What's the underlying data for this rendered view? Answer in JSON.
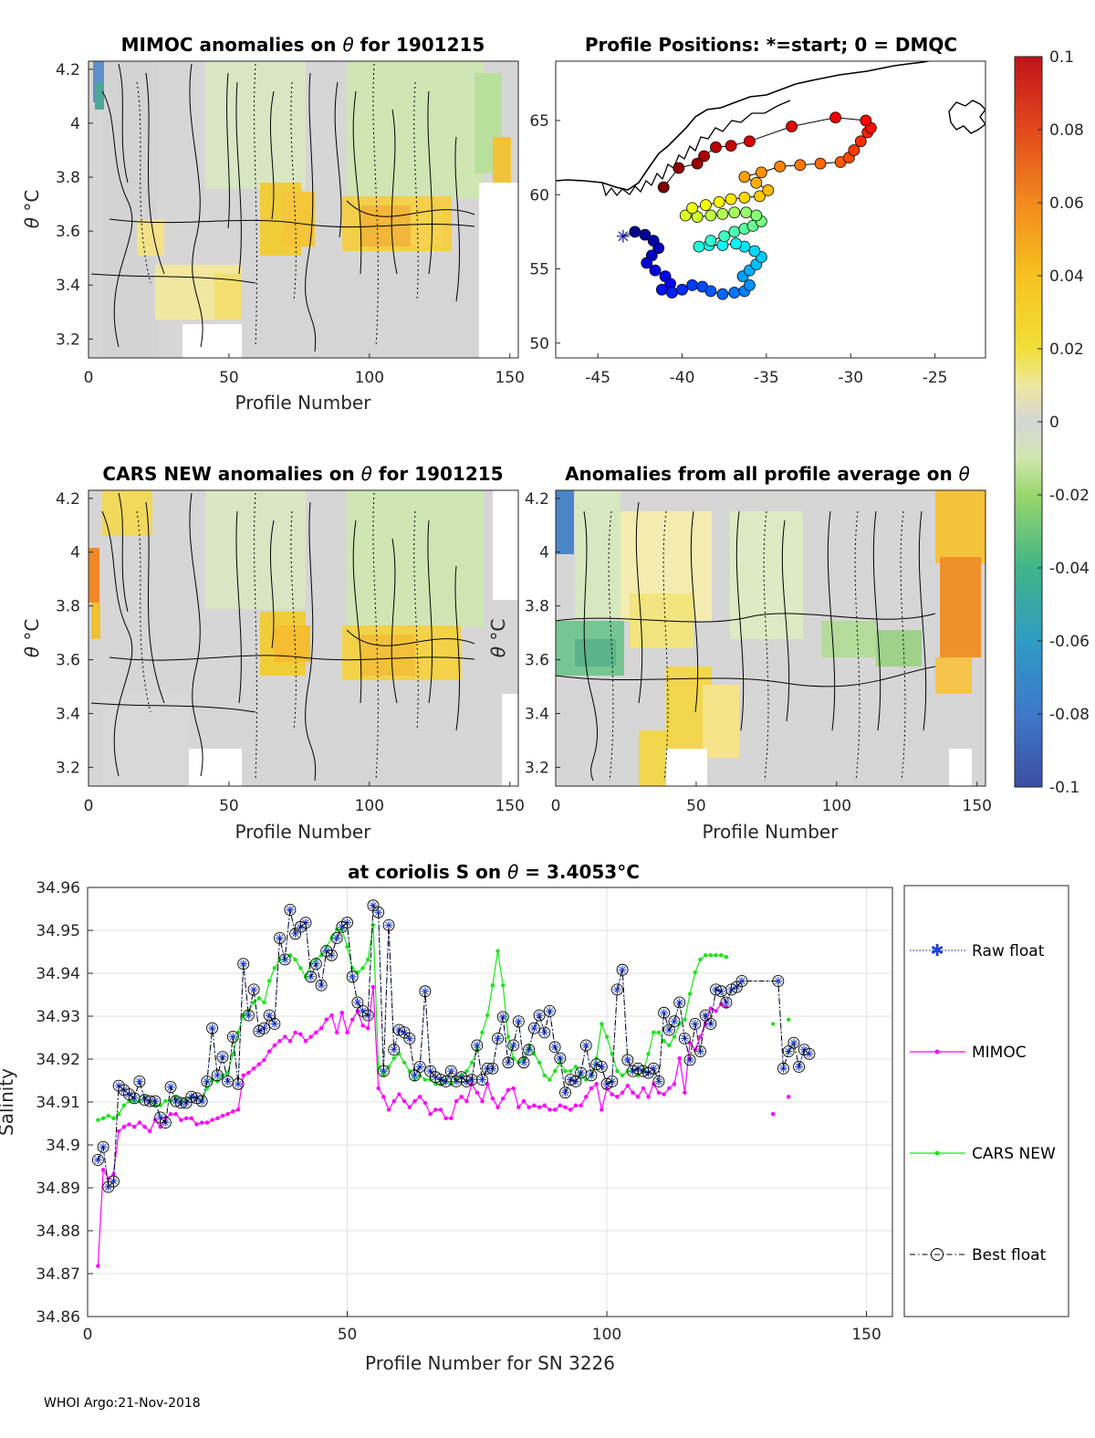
{
  "footer": "WHOI Argo:21-Nov-2018",
  "colors": {
    "raw": "#1f3fd6",
    "mimoc": "#ff00ff",
    "cars": "#19e619",
    "best": "#000000"
  },
  "chart_data": [
    {
      "id": "mimoc_anomalies",
      "type": "heatmap",
      "title_pre": "MIMOC anomalies on ",
      "title_sym": "θ",
      "title_post": "  for 1901215",
      "xlabel": "Profile Number",
      "ylabel_sym": "θ",
      "ylabel_unit": "°C",
      "xlim": [
        0,
        153
      ],
      "ylim": [
        3.13,
        4.23
      ],
      "xticks": [
        0,
        50,
        100,
        150
      ],
      "yticks": [
        3.2,
        3.4,
        3.6,
        3.8,
        4,
        4.2
      ],
      "colorbar": "shared"
    },
    {
      "id": "profile_positions",
      "type": "scatter",
      "title": "Profile Positions: *=start; 0 = DMQC",
      "xlabel": "",
      "ylabel": "",
      "xlim": [
        -47.5,
        -22
      ],
      "ylim": [
        49,
        69
      ],
      "xticks": [
        -45,
        -40,
        -35,
        -30,
        -25
      ],
      "yticks": [
        50,
        55,
        60,
        65
      ],
      "start": [
        -43.5,
        57.2
      ],
      "track": [
        [
          -43.5,
          57.2
        ],
        [
          -42.8,
          57.5
        ],
        [
          -42.2,
          57.3
        ],
        [
          -41.7,
          56.9
        ],
        [
          -41.4,
          56.4
        ],
        [
          -41.8,
          55.9
        ],
        [
          -42.1,
          55.4
        ],
        [
          -41.6,
          54.9
        ],
        [
          -41.0,
          54.5
        ],
        [
          -40.7,
          54.0
        ],
        [
          -41.2,
          53.6
        ],
        [
          -40.6,
          53.4
        ],
        [
          -40.0,
          53.6
        ],
        [
          -39.4,
          53.9
        ],
        [
          -38.8,
          53.8
        ],
        [
          -38.3,
          53.5
        ],
        [
          -37.6,
          53.3
        ],
        [
          -36.9,
          53.4
        ],
        [
          -36.3,
          53.5
        ],
        [
          -36.0,
          53.9
        ],
        [
          -36.4,
          54.5
        ],
        [
          -36.0,
          54.9
        ],
        [
          -35.6,
          55.3
        ],
        [
          -35.3,
          55.8
        ],
        [
          -35.7,
          56.2
        ],
        [
          -36.3,
          56.5
        ],
        [
          -36.8,
          56.7
        ],
        [
          -37.6,
          56.6
        ],
        [
          -38.4,
          56.6
        ],
        [
          -39.0,
          56.5
        ],
        [
          -38.3,
          56.9
        ],
        [
          -37.5,
          57.2
        ],
        [
          -36.9,
          57.5
        ],
        [
          -36.3,
          57.7
        ],
        [
          -35.8,
          57.9
        ],
        [
          -35.3,
          58.2
        ],
        [
          -35.6,
          58.6
        ],
        [
          -36.2,
          58.8
        ],
        [
          -36.9,
          58.8
        ],
        [
          -37.6,
          58.7
        ],
        [
          -38.3,
          58.6
        ],
        [
          -39.1,
          58.5
        ],
        [
          -39.8,
          58.6
        ],
        [
          -39.4,
          59.1
        ],
        [
          -38.6,
          59.3
        ],
        [
          -37.8,
          59.5
        ],
        [
          -37.1,
          59.7
        ],
        [
          -36.3,
          59.8
        ],
        [
          -35.4,
          59.9
        ],
        [
          -34.9,
          60.3
        ],
        [
          -35.6,
          60.8
        ],
        [
          -36.3,
          61.2
        ],
        [
          -35.3,
          61.5
        ],
        [
          -34.2,
          61.9
        ],
        [
          -33.0,
          62.0
        ],
        [
          -31.8,
          62.1
        ],
        [
          -30.6,
          62.2
        ],
        [
          -30.1,
          62.5
        ],
        [
          -29.8,
          63.0
        ],
        [
          -29.4,
          63.6
        ],
        [
          -29.0,
          64.2
        ],
        [
          -28.8,
          64.5
        ],
        [
          -29.1,
          65.0
        ],
        [
          -30.9,
          65.2
        ],
        [
          -33.5,
          64.6
        ],
        [
          -36.0,
          63.6
        ],
        [
          -37.1,
          63.3
        ],
        [
          -38.0,
          63.2
        ],
        [
          -38.7,
          62.6
        ],
        [
          -39.1,
          62.1
        ],
        [
          -40.2,
          61.8
        ],
        [
          -41.1,
          60.5
        ]
      ]
    },
    {
      "id": "cars_anomalies",
      "type": "heatmap",
      "title_pre": "CARS NEW anomalies on ",
      "title_sym": "θ",
      "title_post": " for 1901215",
      "xlabel": "Profile Number",
      "ylabel_sym": "θ",
      "ylabel_unit": "°C",
      "xlim": [
        0,
        153
      ],
      "ylim": [
        3.13,
        4.23
      ],
      "xticks": [
        0,
        50,
        100,
        150
      ],
      "yticks": [
        3.2,
        3.4,
        3.6,
        3.8,
        4,
        4.2
      ]
    },
    {
      "id": "avg_anomalies",
      "type": "heatmap",
      "title_pre": "Anomalies from all profile average on ",
      "title_sym": "θ",
      "title_post": "",
      "xlabel": "Profile Number",
      "ylabel_sym": "θ",
      "ylabel_unit": "°C",
      "xlim": [
        0,
        153
      ],
      "ylim": [
        3.13,
        4.23
      ],
      "xticks": [
        0,
        50,
        100,
        150
      ],
      "yticks": [
        3.2,
        3.4,
        3.6,
        3.8,
        4,
        4.2
      ]
    },
    {
      "id": "colorbar",
      "type": "colorbar",
      "range": [
        -0.1,
        0.1
      ],
      "ticks": [
        "0.1",
        "0.08",
        "0.06",
        "0.04",
        "0.02",
        "0",
        "-0.02",
        "-0.04",
        "-0.06",
        "-0.08",
        "-0.1"
      ]
    },
    {
      "id": "salinity",
      "type": "line",
      "title_pre": "at coriolis S on ",
      "title_sym": "θ",
      "title_post": " = 3.4053°C",
      "xlabel": "Profile Number for SN 3226",
      "ylabel": "Salinity",
      "xlim": [
        0,
        155
      ],
      "ylim": [
        34.86,
        34.96
      ],
      "xticks": [
        0,
        50,
        100,
        150
      ],
      "yticks": [
        "34.86",
        "34.87",
        "34.88",
        "34.89",
        "34.9",
        "34.91",
        "34.92",
        "34.93",
        "34.94",
        "34.95",
        "34.96"
      ],
      "x_start": 2,
      "legend": [
        "Raw float",
        "MIMOC",
        "CARS NEW",
        "Best float"
      ],
      "series": [
        {
          "name": "Raw float",
          "values": [
            34.8965,
            34.8995,
            34.8902,
            34.8915,
            34.9138,
            34.9128,
            34.9118,
            34.9109,
            34.9148,
            34.9105,
            34.9102,
            34.9102,
            34.9064,
            34.9052,
            34.9135,
            34.9102,
            34.9098,
            34.9098,
            34.9112,
            34.9109,
            34.9102,
            34.9148,
            34.9272,
            34.9162,
            34.9205,
            34.9148,
            34.9252,
            34.9142,
            34.9422,
            34.9302,
            34.9362,
            34.9265,
            34.9272,
            34.9302,
            34.9282,
            34.9482,
            34.9432,
            34.9548,
            34.9492,
            34.9508,
            34.9518,
            34.9392,
            34.9422,
            34.9372,
            34.9452,
            34.9442,
            34.9482,
            34.9508,
            34.9518,
            34.9392,
            34.9332,
            34.9312,
            34.9302,
            34.9558,
            34.9542,
            34.9172,
            34.9512,
            34.9222,
            34.9268,
            34.9262,
            34.9248,
            34.9162,
            34.9182,
            34.9358,
            34.9172,
            34.9158,
            34.9152,
            34.9148,
            34.9172,
            34.9148,
            34.9158,
            34.9148,
            34.9152,
            34.9232,
            34.9152,
            34.9178,
            34.9178,
            34.9248,
            34.9298,
            34.9192,
            34.9232,
            34.9288,
            34.9192,
            34.9222,
            34.9272,
            34.9302,
            34.9262,
            34.9312,
            34.9228,
            34.9202,
            34.9122,
            34.9152,
            34.9148,
            34.9168,
            34.9232,
            34.9162,
            34.9188,
            34.9182,
            34.9142,
            34.9148,
            34.9362,
            34.9408,
            34.9198,
            34.9172,
            34.9178,
            34.9172,
            34.9168,
            34.9178,
            34.9148,
            34.9308,
            34.9268,
            34.9288,
            34.9332,
            34.9248,
            34.9198,
            34.9282,
            34.9218,
            34.9302,
            34.9282,
            34.9362,
            34.9358,
            34.9332,
            34.9362,
            34.9368,
            34.9382,
            null,
            null,
            null,
            null,
            null,
            null,
            34.9382,
            34.9178,
            34.9218,
            34.9238,
            34.9182,
            34.9222,
            34.9212
          ]
        },
        {
          "name": "MIMOC",
          "values": [
            34.8718,
            34.8942,
            34.8922,
            34.8932,
            34.9032,
            34.9042,
            34.9048,
            34.9042,
            34.9052,
            34.9042,
            34.9032,
            34.9058,
            34.9042,
            34.9062,
            34.9072,
            34.9072,
            34.9058,
            34.9062,
            34.9062,
            34.9048,
            34.9052,
            34.9052,
            34.9058,
            34.9062,
            34.9068,
            34.9072,
            34.9078,
            34.9082,
            34.9162,
            34.9168,
            34.9178,
            34.9188,
            34.9198,
            34.9218,
            34.9232,
            34.9242,
            34.9252,
            34.9242,
            34.9262,
            34.9258,
            34.9242,
            34.9252,
            34.9262,
            34.9272,
            34.9292,
            34.9302,
            34.9262,
            34.9308,
            34.9262,
            34.9292,
            34.9312,
            34.9278,
            34.9272,
            34.9368,
            34.9132,
            34.9112,
            34.9082,
            34.9102,
            34.9118,
            34.9102,
            34.9088,
            34.9102,
            34.9112,
            34.9098,
            34.9072,
            34.9082,
            34.9082,
            34.9062,
            34.9062,
            34.9102,
            34.9112,
            34.9102,
            34.9142,
            34.9122,
            34.9102,
            34.9142,
            34.9108,
            34.9088,
            34.9108,
            34.9128,
            34.9132,
            34.9088,
            34.9102,
            34.9088,
            34.9092,
            34.9088,
            34.9092,
            34.9082,
            34.9082,
            34.9092,
            34.9088,
            34.9082,
            34.9092,
            34.9092,
            34.9112,
            34.9132,
            34.9142,
            34.9082,
            34.9132,
            34.9118,
            34.9112,
            34.9122,
            34.9138,
            34.9122,
            34.9112,
            34.9132,
            34.9112,
            34.9142,
            34.9122,
            34.9118,
            34.9132,
            34.9142,
            34.9202,
            34.9122,
            34.9238,
            34.9222,
            34.9252,
            34.9282,
            34.9318,
            34.9312,
            34.9328,
            34.9322,
            null,
            null,
            null,
            null,
            null,
            null,
            null,
            null,
            34.9072,
            null,
            null,
            34.9112,
            null
          ]
        },
        {
          "name": "CARS NEW",
          "values": [
            34.9058,
            34.9062,
            34.9068,
            34.9062,
            34.9072,
            34.9092,
            34.9102,
            34.9102,
            34.9102,
            34.9112,
            34.9102,
            34.9092,
            34.9092,
            34.9102,
            34.9102,
            34.9112,
            34.9102,
            34.9102,
            34.9112,
            34.9112,
            34.9102,
            34.9132,
            34.9152,
            34.9148,
            34.9162,
            34.9168,
            34.9212,
            34.9262,
            34.9302,
            34.9312,
            34.9332,
            34.9342,
            34.9332,
            34.9382,
            34.9412,
            34.9432,
            34.9432,
            34.9442,
            34.9432,
            34.9412,
            34.9392,
            34.9422,
            34.9432,
            34.9442,
            34.9462,
            34.9482,
            34.9502,
            34.9502,
            34.9462,
            34.9412,
            34.9402,
            34.9412,
            34.9432,
            34.9512,
            34.9182,
            34.9162,
            34.9182,
            34.9202,
            34.9212,
            34.9192,
            34.9172,
            34.9152,
            34.9162,
            34.9152,
            34.9152,
            34.9142,
            34.9142,
            34.9152,
            34.9142,
            34.9152,
            34.9162,
            34.9172,
            34.9192,
            34.9222,
            34.9262,
            34.9302,
            34.9372,
            34.9452,
            34.9372,
            34.9252,
            34.9202,
            34.9192,
            34.9202,
            34.9232,
            34.9212,
            34.9192,
            34.9162,
            34.9152,
            34.9172,
            34.9192,
            34.9172,
            34.9172,
            34.9182,
            34.9162,
            34.9152,
            34.9162,
            34.9202,
            34.9282,
            34.9252,
            34.9212,
            34.9172,
            34.9162,
            34.9172,
            34.9172,
            34.9162,
            34.9172,
            34.9212,
            34.9262,
            34.9262,
            34.9242,
            34.9232,
            34.9252,
            34.9282,
            34.9292,
            34.9352,
            34.9402,
            34.9432,
            34.9442,
            34.9442,
            34.9442,
            34.9442,
            34.9438,
            null,
            null,
            null,
            null,
            null,
            null,
            null,
            null,
            34.9282,
            null,
            null,
            34.9292,
            null
          ]
        },
        {
          "name": "Best float",
          "values": [
            34.8965,
            34.8995,
            34.8902,
            34.8915,
            34.9138,
            34.9128,
            34.9118,
            34.9109,
            34.9148,
            34.9105,
            34.9102,
            34.9102,
            34.9064,
            34.9052,
            34.9135,
            34.9102,
            34.9098,
            34.9098,
            34.9112,
            34.9109,
            34.9102,
            34.9148,
            34.9272,
            34.9162,
            34.9205,
            34.9148,
            34.9252,
            34.9142,
            34.9422,
            34.9302,
            34.9362,
            34.9265,
            34.9272,
            34.9302,
            34.9282,
            34.9482,
            34.9432,
            34.9548,
            34.9492,
            34.9508,
            34.9518,
            34.9392,
            34.9422,
            34.9372,
            34.9452,
            34.9442,
            34.9482,
            34.9508,
            34.9518,
            34.9392,
            34.9332,
            34.9312,
            34.9302,
            34.9558,
            34.9542,
            34.9172,
            34.9512,
            34.9222,
            34.9268,
            34.9262,
            34.9248,
            34.9162,
            34.9182,
            34.9358,
            34.9172,
            34.9158,
            34.9152,
            34.9148,
            34.9172,
            34.9148,
            34.9158,
            34.9148,
            34.9152,
            34.9232,
            34.9152,
            34.9178,
            34.9178,
            34.9248,
            34.9298,
            34.9192,
            34.9232,
            34.9288,
            34.9192,
            34.9222,
            34.9272,
            34.9302,
            34.9262,
            34.9312,
            34.9228,
            34.9202,
            34.9122,
            34.9152,
            34.9148,
            34.9168,
            34.9232,
            34.9162,
            34.9188,
            34.9182,
            34.9142,
            34.9148,
            34.9362,
            34.9408,
            34.9198,
            34.9172,
            34.9178,
            34.9172,
            34.9168,
            34.9178,
            34.9148,
            34.9308,
            34.9268,
            34.9288,
            34.9332,
            34.9248,
            34.9198,
            34.9282,
            34.9218,
            34.9302,
            34.9282,
            34.9362,
            34.9358,
            34.9332,
            34.9362,
            34.9368,
            34.9382,
            null,
            null,
            null,
            null,
            null,
            null,
            34.9382,
            34.9178,
            34.9218,
            34.9238,
            34.9182,
            34.9222,
            34.9212
          ]
        }
      ]
    }
  ]
}
